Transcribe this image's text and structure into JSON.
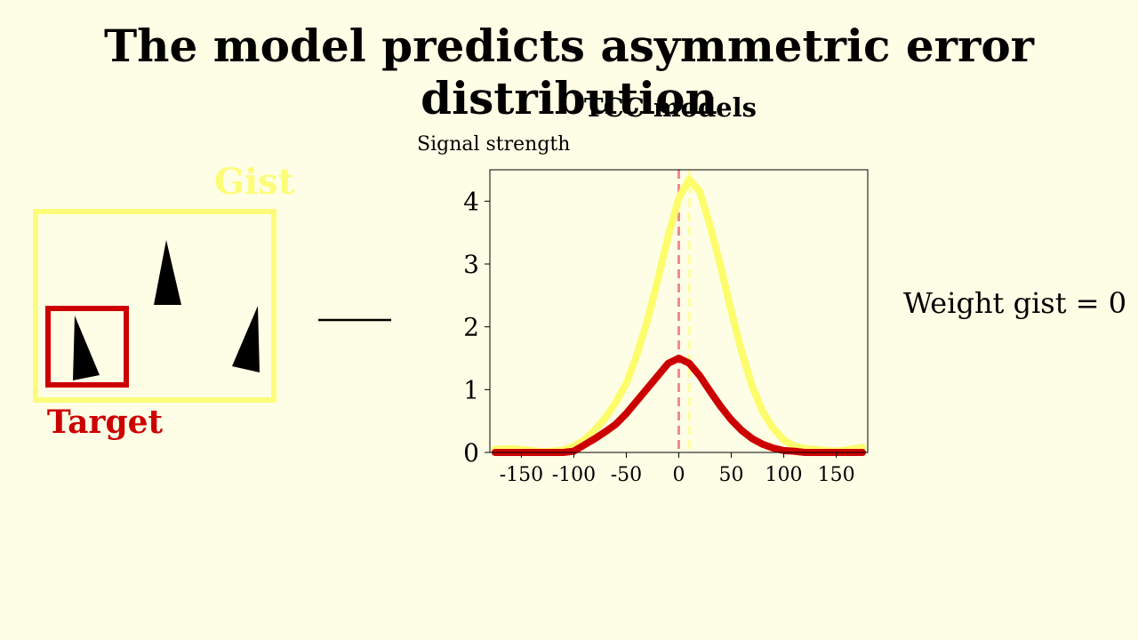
{
  "slide": {
    "title": "The model predicts asymmetric error distribution",
    "weight_label": "Weight gist = 0"
  },
  "diagram": {
    "gist_label": "Gist",
    "target_label": "Target",
    "gist_color": "#fdfc7a",
    "target_color": "#cc0000"
  },
  "chart_data": {
    "type": "line",
    "title": "TCC models",
    "ylabel": "Signal strength",
    "xlabel": "",
    "xlim": [
      -180,
      180
    ],
    "ylim": [
      0,
      4.5
    ],
    "x_ticks": [
      -150,
      -100,
      -50,
      0,
      50,
      100,
      150
    ],
    "y_ticks": [
      0,
      1,
      2,
      3,
      4
    ],
    "grid": false,
    "x": [
      -175,
      -160,
      -150,
      -140,
      -130,
      -120,
      -110,
      -100,
      -90,
      -80,
      -70,
      -60,
      -50,
      -40,
      -30,
      -20,
      -10,
      0,
      10,
      20,
      30,
      40,
      50,
      60,
      70,
      80,
      90,
      100,
      110,
      120,
      130,
      140,
      150,
      160,
      175
    ],
    "series": [
      {
        "name": "",
        "color": "#fdfc6a",
        "values": [
          0.05,
          0.06,
          0.05,
          0.03,
          0.01,
          0.02,
          0.04,
          0.1,
          0.2,
          0.36,
          0.55,
          0.8,
          1.1,
          1.55,
          2.1,
          2.75,
          3.45,
          4.05,
          4.35,
          4.15,
          3.6,
          2.95,
          2.25,
          1.6,
          1.05,
          0.65,
          0.38,
          0.2,
          0.1,
          0.06,
          0.05,
          0.03,
          0.02,
          0.04,
          0.08
        ]
      },
      {
        "name": "",
        "color": "#cc0000",
        "values": [
          0.0,
          0.0,
          0.0,
          0.0,
          0.0,
          0.0,
          0.0,
          0.02,
          0.12,
          0.22,
          0.33,
          0.45,
          0.62,
          0.82,
          1.02,
          1.22,
          1.42,
          1.5,
          1.42,
          1.22,
          0.97,
          0.73,
          0.52,
          0.35,
          0.22,
          0.13,
          0.07,
          0.03,
          0.02,
          0.0,
          0.0,
          0.0,
          0.0,
          0.0,
          0.0
        ]
      }
    ],
    "vlines": [
      {
        "x": 0,
        "color": "#f08a8a"
      },
      {
        "x": 10,
        "color": "#fefea0"
      }
    ]
  }
}
